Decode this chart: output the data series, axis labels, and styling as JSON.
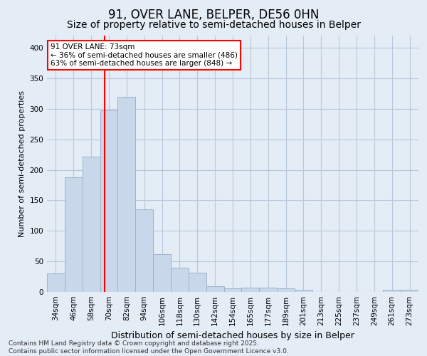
{
  "title": "91, OVER LANE, BELPER, DE56 0HN",
  "subtitle": "Size of property relative to semi-detached houses in Belper",
  "xlabel": "Distribution of semi-detached houses by size in Belper",
  "ylabel": "Number of semi-detached properties",
  "categories": [
    "34sqm",
    "46sqm",
    "58sqm",
    "70sqm",
    "82sqm",
    "94sqm",
    "106sqm",
    "118sqm",
    "130sqm",
    "142sqm",
    "154sqm",
    "165sqm",
    "177sqm",
    "189sqm",
    "201sqm",
    "213sqm",
    "225sqm",
    "237sqm",
    "249sqm",
    "261sqm",
    "273sqm"
  ],
  "values": [
    30,
    188,
    222,
    297,
    320,
    135,
    62,
    40,
    32,
    9,
    6,
    7,
    7,
    6,
    3,
    0,
    0,
    0,
    0,
    4,
    3
  ],
  "bar_color": "#c8d8ea",
  "bar_edgecolor": "#9ab4cc",
  "grid_color": "#b8c8dc",
  "bg_color": "#e4ecf6",
  "property_line_color": "red",
  "annotation_title": "91 OVER LANE: 73sqm",
  "annotation_line1": "← 36% of semi-detached houses are smaller (486)",
  "annotation_line2": "63% of semi-detached houses are larger (848) →",
  "annotation_box_color": "white",
  "annotation_box_edgecolor": "red",
  "ylim": [
    0,
    420
  ],
  "yticks": [
    0,
    50,
    100,
    150,
    200,
    250,
    300,
    350,
    400
  ],
  "footer": "Contains HM Land Registry data © Crown copyright and database right 2025.\nContains public sector information licensed under the Open Government Licence v3.0.",
  "title_fontsize": 12,
  "subtitle_fontsize": 10,
  "xlabel_fontsize": 9,
  "ylabel_fontsize": 8,
  "tick_fontsize": 7.5,
  "footer_fontsize": 6.5,
  "annotation_fontsize": 7.5
}
